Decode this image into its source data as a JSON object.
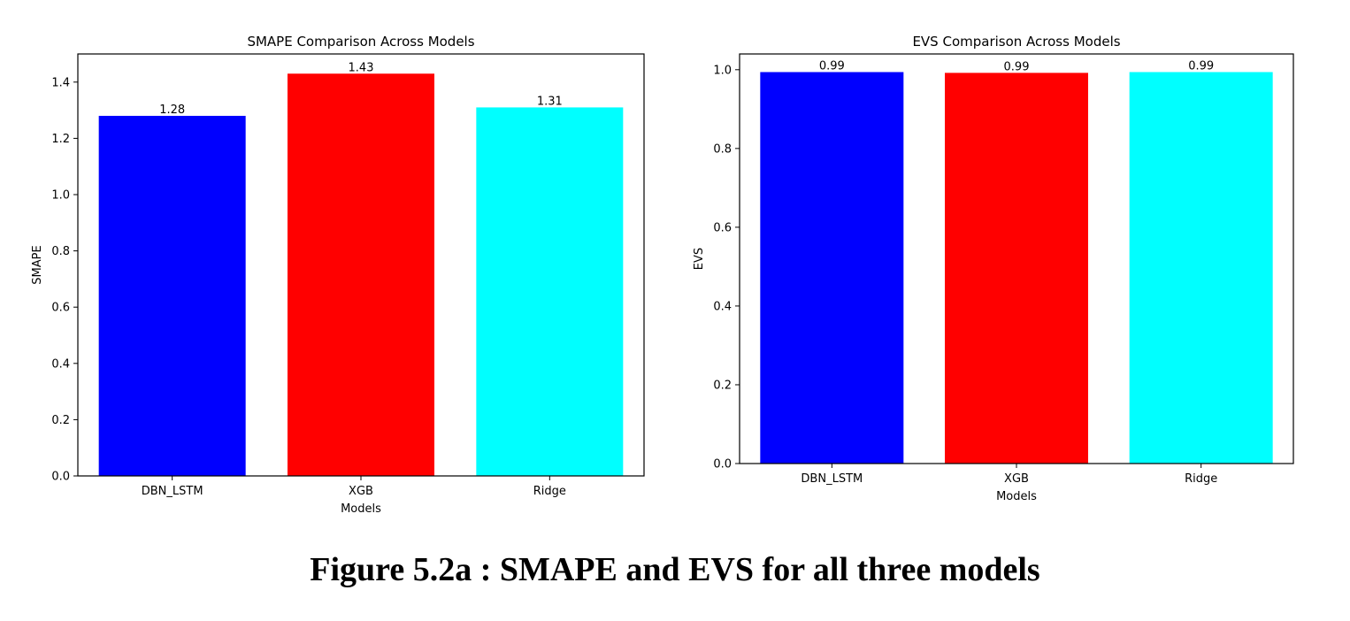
{
  "figure": {
    "caption": "Figure 5.2a : SMAPE and EVS for all three models"
  },
  "chart_data": [
    {
      "type": "bar",
      "title": "SMAPE Comparison Across Models",
      "xlabel": "Models",
      "ylabel": "SMAPE",
      "categories": [
        "DBN_LSTM",
        "XGB",
        "Ridge"
      ],
      "values": [
        1.28,
        1.43,
        1.31
      ],
      "data_labels": [
        "1.28",
        "1.43",
        "1.31"
      ],
      "colors": [
        "#0000ff",
        "#ff0000",
        "#00ffff"
      ],
      "ylim": [
        0,
        1.5
      ],
      "yticks": [
        0.0,
        0.2,
        0.4,
        0.6,
        0.8,
        1.0,
        1.2,
        1.4
      ],
      "ytick_labels": [
        "0.0",
        "0.2",
        "0.4",
        "0.6",
        "0.8",
        "1.0",
        "1.2",
        "1.4"
      ],
      "grid": false,
      "legend": "none"
    },
    {
      "type": "bar",
      "title": "EVS Comparison Across Models",
      "xlabel": "Models",
      "ylabel": "EVS",
      "categories": [
        "DBN_LSTM",
        "XGB",
        "Ridge"
      ],
      "values": [
        0.994,
        0.992,
        0.994
      ],
      "data_labels": [
        "0.99",
        "0.99",
        "0.99"
      ],
      "colors": [
        "#0000ff",
        "#ff0000",
        "#00ffff"
      ],
      "ylim": [
        0,
        1.04
      ],
      "yticks": [
        0.0,
        0.2,
        0.4,
        0.6,
        0.8,
        1.0
      ],
      "ytick_labels": [
        "0.0",
        "0.2",
        "0.4",
        "0.6",
        "0.8",
        "1.0"
      ],
      "grid": false,
      "legend": "none"
    }
  ]
}
